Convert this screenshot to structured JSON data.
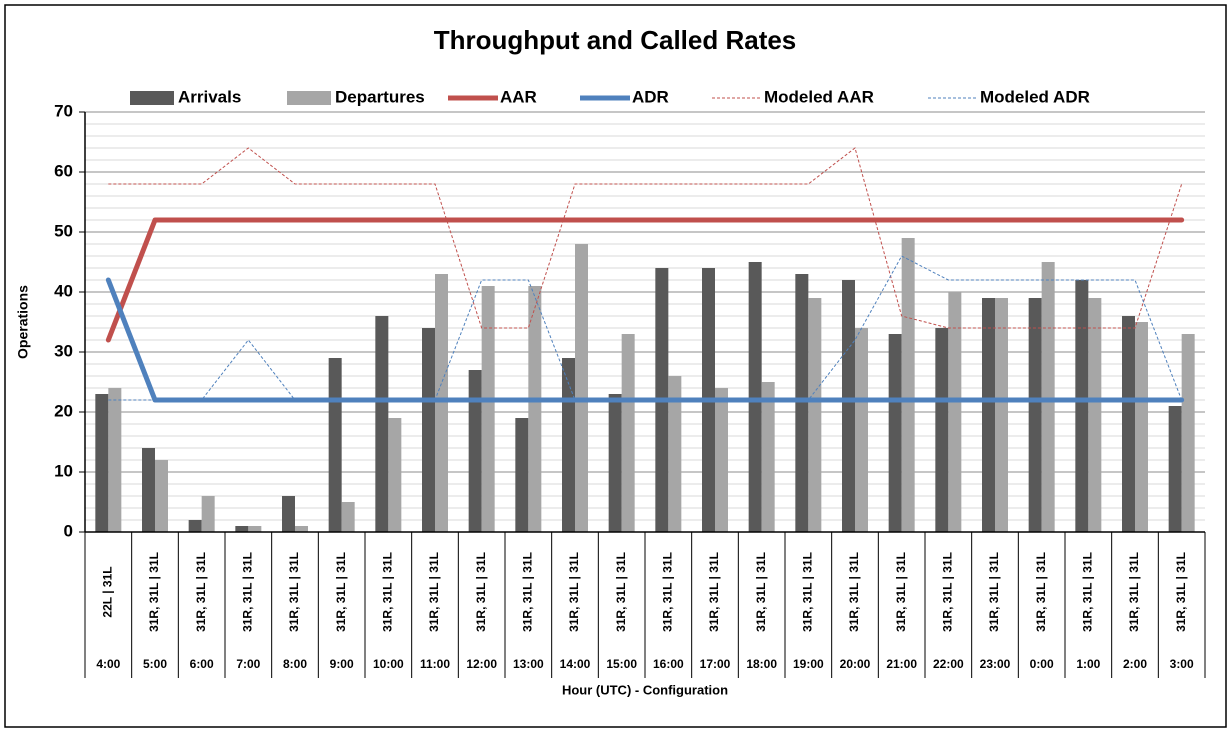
{
  "chart_data": {
    "type": "bar-line",
    "title": "Throughput and Called Rates",
    "y_label": "Operations",
    "x_label": "Hour (UTC) - Configuration",
    "categories": [
      "4:00",
      "5:00",
      "6:00",
      "7:00",
      "8:00",
      "9:00",
      "10:00",
      "11:00",
      "12:00",
      "13:00",
      "14:00",
      "15:00",
      "16:00",
      "17:00",
      "18:00",
      "19:00",
      "20:00",
      "21:00",
      "22:00",
      "23:00",
      "0:00",
      "1:00",
      "2:00",
      "3:00"
    ],
    "configurations": [
      "22L | 31L",
      "31R, 31L | 31L",
      "31R, 31L | 31L",
      "31R, 31L | 31L",
      "31R, 31L | 31L",
      "31R, 31L | 31L",
      "31R, 31L | 31L",
      "31R, 31L | 31L",
      "31R, 31L | 31L",
      "31R, 31L | 31L",
      "31R, 31L | 31L",
      "31R, 31L | 31L",
      "31R, 31L | 31L",
      "31R, 31L | 31L",
      "31R, 31L | 31L",
      "31R, 31L | 31L",
      "31R, 31L | 31L",
      "31R, 31L | 31L",
      "31R, 31L | 31L",
      "31R, 31L | 31L",
      "31R, 31L | 31L",
      "31R, 31L | 31L",
      "31R, 31L | 31L",
      "31R, 31L | 31L"
    ],
    "series": [
      {
        "name": "Arrivals",
        "kind": "bar",
        "color": "#595959",
        "values": [
          23,
          14,
          2,
          1,
          6,
          29,
          36,
          34,
          27,
          19,
          29,
          23,
          44,
          44,
          45,
          43,
          42,
          33,
          34,
          39,
          39,
          42,
          36,
          21
        ]
      },
      {
        "name": "Departures",
        "kind": "bar",
        "color": "#a6a6a6",
        "values": [
          24,
          12,
          6,
          1,
          1,
          5,
          19,
          43,
          41,
          41,
          48,
          33,
          26,
          24,
          25,
          39,
          34,
          49,
          40,
          39,
          45,
          39,
          35,
          33
        ]
      },
      {
        "name": "AAR",
        "kind": "line",
        "color": "#c0504d",
        "values": [
          32,
          52,
          52,
          52,
          52,
          52,
          52,
          52,
          52,
          52,
          52,
          52,
          52,
          52,
          52,
          52,
          52,
          52,
          52,
          52,
          52,
          52,
          52,
          52
        ]
      },
      {
        "name": "ADR",
        "kind": "line",
        "color": "#4f81bd",
        "values": [
          42,
          22,
          22,
          22,
          22,
          22,
          22,
          22,
          22,
          22,
          22,
          22,
          22,
          22,
          22,
          22,
          22,
          22,
          22,
          22,
          22,
          22,
          22,
          22
        ]
      },
      {
        "name": "Modeled AAR",
        "kind": "dashed",
        "color": "#c0504d",
        "values": [
          58,
          58,
          58,
          64,
          58,
          58,
          58,
          58,
          34,
          34,
          58,
          58,
          58,
          58,
          58,
          58,
          64,
          36,
          34,
          34,
          34,
          34,
          34,
          58
        ]
      },
      {
        "name": "Modeled ADR",
        "kind": "dashed",
        "color": "#4f81bd",
        "values": [
          22,
          22,
          22,
          32,
          22,
          22,
          22,
          22,
          42,
          42,
          22,
          22,
          22,
          22,
          22,
          22,
          32,
          46,
          42,
          42,
          42,
          42,
          42,
          22
        ]
      }
    ],
    "ylim": [
      0,
      70
    ],
    "yticks": [
      0,
      10,
      20,
      30,
      40,
      50,
      60,
      70
    ],
    "minor_yticks": [
      2,
      4,
      6,
      8,
      12,
      14,
      16,
      18,
      22,
      24,
      26,
      28,
      32,
      34,
      36,
      38,
      42,
      44,
      46,
      48,
      52,
      54,
      56,
      58,
      62,
      64,
      66,
      68
    ],
    "grid": true,
    "legend": "top"
  }
}
